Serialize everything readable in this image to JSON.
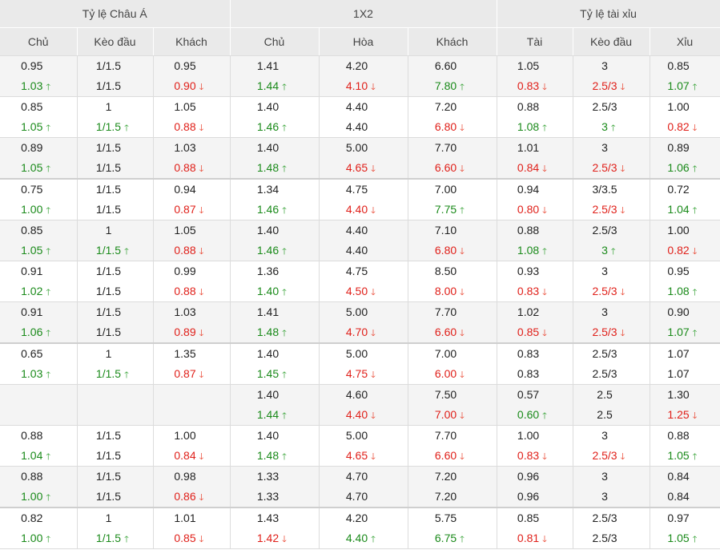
{
  "groups": [
    "Tỷ lệ Châu Á",
    "1X2",
    "Tỷ lệ tài xỉu"
  ],
  "columns": [
    "Chủ",
    "Kèo đầu",
    "Khách",
    "Chủ",
    "Hòa",
    "Khách",
    "Tài",
    "Kèo đầu",
    "Xỉu"
  ],
  "arrows": {
    "up": "🡑",
    "down": "🡓"
  },
  "rows": [
    {
      "cells": [
        [
          "0.95",
          "1.03",
          "up"
        ],
        [
          "1/1.5",
          "1/1.5",
          ""
        ],
        [
          "0.95",
          "0.90",
          "down"
        ],
        [
          "1.41",
          "1.44",
          "up"
        ],
        [
          "4.20",
          "4.10",
          "down"
        ],
        [
          "6.60",
          "7.80",
          "up"
        ],
        [
          "1.05",
          "0.83",
          "down"
        ],
        [
          "3",
          "2.5/3",
          "down"
        ],
        [
          "0.85",
          "1.07",
          "up"
        ]
      ]
    },
    {
      "cells": [
        [
          "0.85",
          "1.05",
          "up"
        ],
        [
          "1",
          "1/1.5",
          "up"
        ],
        [
          "1.05",
          "0.88",
          "down"
        ],
        [
          "1.40",
          "1.46",
          "up"
        ],
        [
          "4.40",
          "4.40",
          ""
        ],
        [
          "7.20",
          "6.80",
          "down"
        ],
        [
          "0.88",
          "1.08",
          "up"
        ],
        [
          "2.5/3",
          "3",
          "up"
        ],
        [
          "1.00",
          "0.82",
          "down"
        ]
      ]
    },
    {
      "cells": [
        [
          "0.89",
          "1.05",
          "up"
        ],
        [
          "1/1.5",
          "1/1.5",
          ""
        ],
        [
          "1.03",
          "0.88",
          "down"
        ],
        [
          "1.40",
          "1.48",
          "up"
        ],
        [
          "5.00",
          "4.65",
          "down"
        ],
        [
          "7.70",
          "6.60",
          "down"
        ],
        [
          "1.01",
          "0.84",
          "down"
        ],
        [
          "3",
          "2.5/3",
          "down"
        ],
        [
          "0.89",
          "1.06",
          "up"
        ]
      ]
    },
    {
      "cells": [
        [
          "0.75",
          "1.00",
          "up"
        ],
        [
          "1/1.5",
          "1/1.5",
          ""
        ],
        [
          "0.94",
          "0.87",
          "down"
        ],
        [
          "1.34",
          "1.46",
          "up"
        ],
        [
          "4.75",
          "4.40",
          "down"
        ],
        [
          "7.00",
          "7.75",
          "up"
        ],
        [
          "0.94",
          "0.80",
          "down"
        ],
        [
          "3/3.5",
          "2.5/3",
          "down"
        ],
        [
          "0.72",
          "1.04",
          "up"
        ]
      ]
    },
    {
      "cells": [
        [
          "0.85",
          "1.05",
          "up"
        ],
        [
          "1",
          "1/1.5",
          "up"
        ],
        [
          "1.05",
          "0.88",
          "down"
        ],
        [
          "1.40",
          "1.46",
          "up"
        ],
        [
          "4.40",
          "4.40",
          ""
        ],
        [
          "7.10",
          "6.80",
          "down"
        ],
        [
          "0.88",
          "1.08",
          "up"
        ],
        [
          "2.5/3",
          "3",
          "up"
        ],
        [
          "1.00",
          "0.82",
          "down"
        ]
      ]
    },
    {
      "cells": [
        [
          "0.91",
          "1.02",
          "up"
        ],
        [
          "1/1.5",
          "1/1.5",
          ""
        ],
        [
          "0.99",
          "0.88",
          "down"
        ],
        [
          "1.36",
          "1.40",
          "up"
        ],
        [
          "4.75",
          "4.50",
          "down"
        ],
        [
          "8.50",
          "8.00",
          "down"
        ],
        [
          "0.93",
          "0.83",
          "down"
        ],
        [
          "3",
          "2.5/3",
          "down"
        ],
        [
          "0.95",
          "1.08",
          "up"
        ]
      ]
    },
    {
      "cells": [
        [
          "0.91",
          "1.06",
          "up"
        ],
        [
          "1/1.5",
          "1/1.5",
          ""
        ],
        [
          "1.03",
          "0.89",
          "down"
        ],
        [
          "1.41",
          "1.48",
          "up"
        ],
        [
          "5.00",
          "4.70",
          "down"
        ],
        [
          "7.70",
          "6.60",
          "down"
        ],
        [
          "1.02",
          "0.85",
          "down"
        ],
        [
          "3",
          "2.5/3",
          "down"
        ],
        [
          "0.90",
          "1.07",
          "up"
        ]
      ]
    },
    {
      "cells": [
        [
          "0.65",
          "1.03",
          "up"
        ],
        [
          "1",
          "1/1.5",
          "up"
        ],
        [
          "1.35",
          "0.87",
          "down"
        ],
        [
          "1.40",
          "1.45",
          "up"
        ],
        [
          "5.00",
          "4.75",
          "down"
        ],
        [
          "7.00",
          "6.00",
          "down"
        ],
        [
          "0.83",
          "0.83",
          ""
        ],
        [
          "2.5/3",
          "2.5/3",
          ""
        ],
        [
          "1.07",
          "1.07",
          ""
        ]
      ]
    },
    {
      "cells": [
        [
          "",
          "",
          ""
        ],
        [
          "",
          "",
          ""
        ],
        [
          "",
          "",
          ""
        ],
        [
          "1.40",
          "1.44",
          "up"
        ],
        [
          "4.60",
          "4.40",
          "down"
        ],
        [
          "7.50",
          "7.00",
          "down"
        ],
        [
          "0.57",
          "0.60",
          "up"
        ],
        [
          "2.5",
          "2.5",
          ""
        ],
        [
          "1.30",
          "1.25",
          "down"
        ]
      ]
    },
    {
      "cells": [
        [
          "0.88",
          "1.04",
          "up"
        ],
        [
          "1/1.5",
          "1/1.5",
          ""
        ],
        [
          "1.00",
          "0.84",
          "down"
        ],
        [
          "1.40",
          "1.48",
          "up"
        ],
        [
          "5.00",
          "4.65",
          "down"
        ],
        [
          "7.70",
          "6.60",
          "down"
        ],
        [
          "1.00",
          "0.83",
          "down"
        ],
        [
          "3",
          "2.5/3",
          "down"
        ],
        [
          "0.88",
          "1.05",
          "up"
        ]
      ]
    },
    {
      "cells": [
        [
          "0.88",
          "1.00",
          "up"
        ],
        [
          "1/1.5",
          "1/1.5",
          ""
        ],
        [
          "0.98",
          "0.86",
          "down"
        ],
        [
          "1.33",
          "1.33",
          ""
        ],
        [
          "4.70",
          "4.70",
          ""
        ],
        [
          "7.20",
          "7.20",
          ""
        ],
        [
          "0.96",
          "0.96",
          ""
        ],
        [
          "3",
          "3",
          ""
        ],
        [
          "0.84",
          "0.84",
          ""
        ]
      ]
    },
    {
      "cells": [
        [
          "0.82",
          "1.00",
          "up"
        ],
        [
          "1",
          "1/1.5",
          "up"
        ],
        [
          "1.01",
          "0.85",
          "down"
        ],
        [
          "1.43",
          "1.42",
          "down"
        ],
        [
          "4.20",
          "4.40",
          "up"
        ],
        [
          "5.75",
          "6.75",
          "up"
        ],
        [
          "0.85",
          "0.81",
          "down"
        ],
        [
          "2.5/3",
          "2.5/3",
          ""
        ],
        [
          "0.97",
          "1.05",
          "up"
        ]
      ]
    }
  ]
}
